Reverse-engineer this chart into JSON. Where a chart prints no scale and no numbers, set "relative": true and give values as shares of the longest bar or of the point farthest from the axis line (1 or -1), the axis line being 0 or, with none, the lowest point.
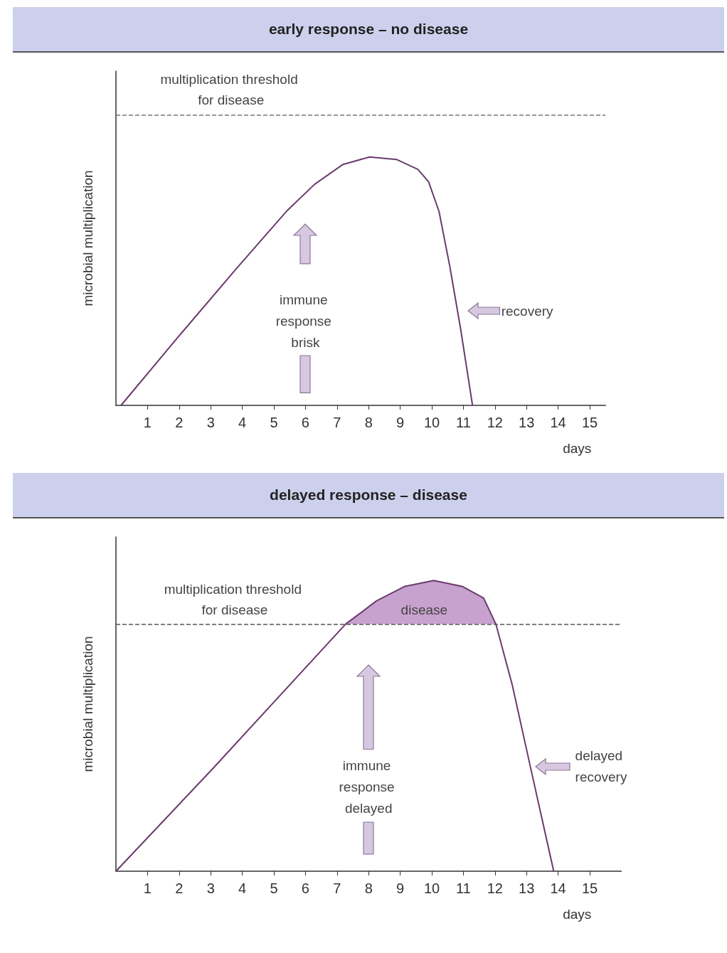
{
  "chart_data": [
    {
      "type": "line",
      "title": "early response – no disease",
      "xlabel": "days",
      "ylabel": "microbial multiplication",
      "relative": true,
      "xlim": [
        0,
        15.5
      ],
      "xticks": [
        1,
        2,
        3,
        4,
        5,
        6,
        7,
        8,
        9,
        10,
        11,
        12,
        13,
        14,
        15
      ],
      "series": [
        {
          "color": "#6b3a6e",
          "x": [
            0.16,
            2.0,
            3.81,
            5.39,
            6.29,
            7.19,
            8.03,
            8.88,
            9.56,
            9.9,
            10.23,
            10.57,
            10.91,
            11.29
          ],
          "values": [
            0,
            0.28,
            0.55,
            0.78,
            0.89,
            0.97,
            1,
            0.99,
            0.95,
            0.9,
            0.78,
            0.56,
            0.31,
            0
          ]
        }
      ],
      "ref_lines": [
        {
          "axis": "y",
          "value": 1.17,
          "label": "multiplication threshold for disease",
          "line_style": "dashed",
          "color": "#777777"
        }
      ],
      "annotations": [
        "immune response brisk",
        "recovery"
      ],
      "grid": false,
      "marker": "none",
      "line_style": "solid"
    },
    {
      "type": "line",
      "title": "delayed response – disease",
      "xlabel": "days",
      "ylabel": "microbial multiplication",
      "relative": true,
      "xlim": [
        0,
        16
      ],
      "xticks": [
        1,
        2,
        3,
        4,
        5,
        6,
        7,
        8,
        9,
        10,
        11,
        12,
        13,
        14,
        15
      ],
      "series": [
        {
          "color": "#6b3a6e",
          "x": [
            0,
            3.04,
            7.27,
            8.25,
            9.15,
            10.06,
            10.96,
            11.64,
            12.03,
            12.55,
            13.12,
            13.86
          ],
          "values": [
            0,
            0.35,
            0.85,
            0.93,
            0.98,
            1,
            0.98,
            0.94,
            0.85,
            0.64,
            0.36,
            0
          ]
        },
        {
          "type": "area",
          "color": "#c8a2cf",
          "x": [
            7.27,
            8.25,
            9.15,
            10.06,
            10.96,
            11.64,
            12.03
          ],
          "values": [
            0.85,
            0.93,
            0.98,
            1,
            0.98,
            0.94,
            0.85
          ]
        }
      ],
      "ref_lines": [
        {
          "axis": "y",
          "value": 0.85,
          "label": "multiplication threshold for disease",
          "line_style": "dashed",
          "color": "#555555"
        }
      ],
      "annotations": [
        "disease",
        "immune response delayed",
        "delayed recovery"
      ],
      "grid": false,
      "marker": "none",
      "line_style": "solid"
    }
  ]
}
